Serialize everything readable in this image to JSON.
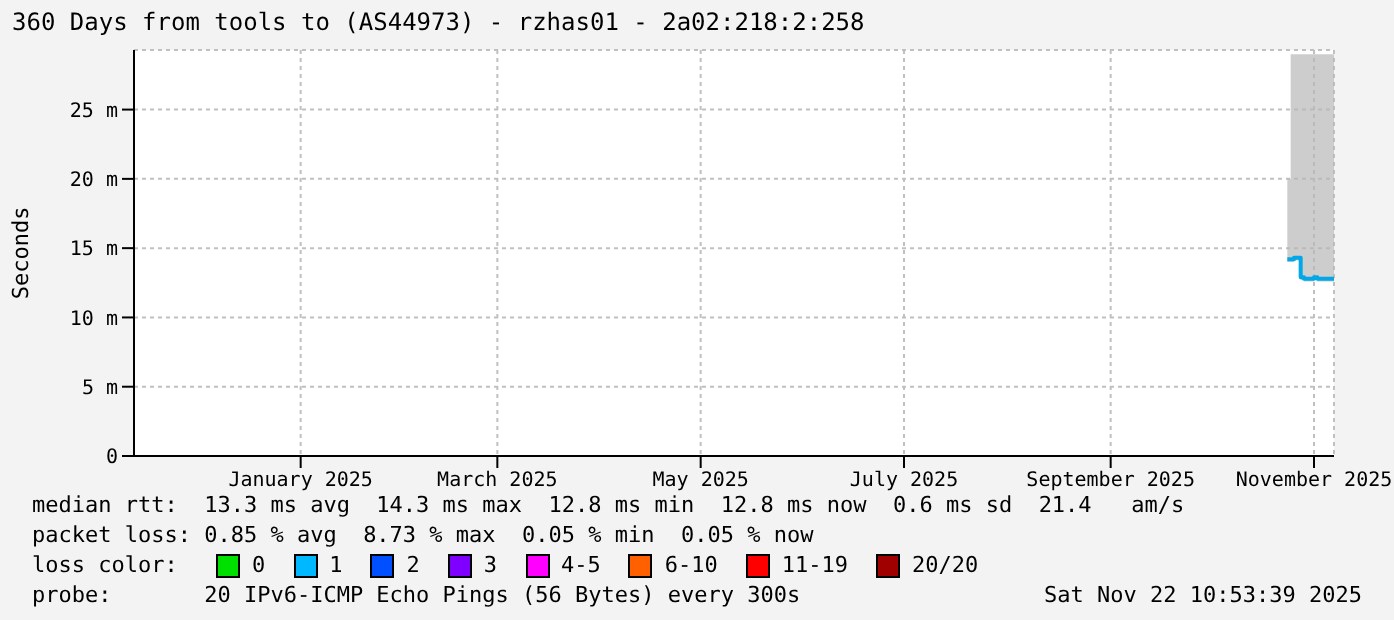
{
  "chart_data": {
    "type": "step",
    "title": "360 Days from tools to (AS44973) - rzhas01 - 2a02:218:2:258",
    "ylabel": "Seconds",
    "x": [
      "2025-11-08",
      "2025-11-09",
      "2025-11-10",
      "2025-11-11",
      "2025-11-12",
      "2025-11-13",
      "2025-11-14",
      "2025-11-15",
      "2025-11-16",
      "2025-11-17",
      "2025-11-18",
      "2025-11-19",
      "2025-11-20",
      "2025-11-21",
      "2025-11-22"
    ],
    "series": [
      {
        "color": "#00a8e8",
        "values": [
          14.2,
          14.2,
          14.3,
          14.3,
          12.9,
          12.8,
          12.8,
          12.8,
          12.9,
          12.8,
          12.8,
          12.8,
          12.8,
          12.8,
          12.8
        ],
        "lower": [
          14.0,
          14.0,
          14.1,
          14.1,
          12.7,
          12.6,
          12.6,
          12.6,
          12.7,
          12.6,
          12.6,
          12.6,
          12.6,
          12.6,
          12.6
        ],
        "upper": [
          20,
          29,
          29,
          29,
          29,
          29,
          29,
          29,
          29,
          29,
          29,
          29,
          29,
          29,
          29
        ]
      }
    ],
    "xlim": [
      "2024-11-27",
      "2025-11-22"
    ],
    "xticks": [
      {
        "value": "2025-01-16",
        "label": "January 2025"
      },
      {
        "value": "2025-03-16",
        "label": "March 2025"
      },
      {
        "value": "2025-05-16",
        "label": "May 2025"
      },
      {
        "value": "2025-07-16",
        "label": "July 2025"
      },
      {
        "value": "2025-09-16",
        "label": "September 2025"
      },
      {
        "value": "2025-11-16",
        "label": "November 2025"
      }
    ],
    "ylim": [
      0,
      29.3
    ],
    "yticks": [
      0,
      {
        "value": 5,
        "label": "5 m"
      },
      {
        "value": 10,
        "label": "10 m"
      },
      {
        "value": 15,
        "label": "15 m"
      },
      {
        "value": 20,
        "label": "20 m"
      },
      {
        "value": 25,
        "label": "25 m"
      }
    ],
    "grid": true,
    "marker": "none",
    "legend": false,
    "annotations": [
      "median rtt:  13.3 ms avg  14.3 ms max  12.8 ms min  12.8 ms now  0.6 ms sd  21.4   am/s",
      "packet loss: 0.85 % avg  8.73 % max  0.05 % min  0.05 % now",
      "loss color:",
      "0",
      "1",
      "2",
      "3",
      "4-5",
      "6-10",
      "11-19",
      "20/20",
      "probe:       20 IPv6-ICMP Echo Pings (56 Bytes) every 300s",
      "Sat Nov 22 10:53:39 2025"
    ]
  }
}
